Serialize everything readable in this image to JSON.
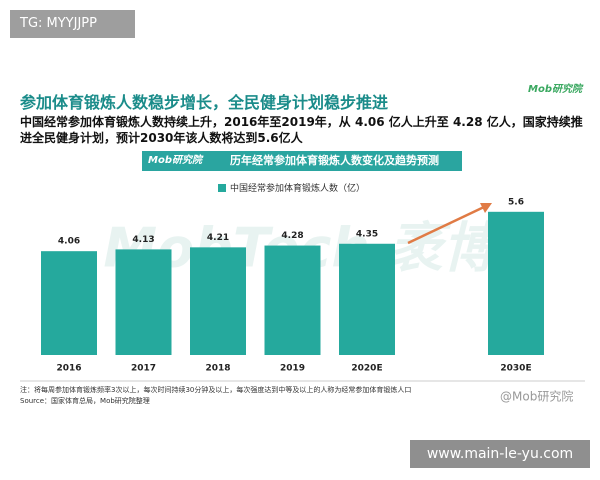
{
  "tag": "TG: MYYJJPP",
  "title": "参加体育锻炼人数稳步增长，全民健身计划稳步推进",
  "logo": "Mob研究院",
  "subtitle": "中国经常参加体育锻炼人数持续上升，2016年至2019年，从 4.06 亿人上升至 4.28 亿人，国家持续推进全民健身计划，预计2030年该人数将达到5.6亿人",
  "banner": {
    "logo": "Mob研究院",
    "title": "历年经常参加体育锻炼人数变化及趋势预测"
  },
  "background_watermark": "MobTech 袤博",
  "note": "注：将每周参加体育锻炼频率3次以上，每次时间持续30分钟及以上，每次强度达到中等及以上的人称为经常参加体育锻炼人口",
  "source": "Source：国家体育总局，Mob研究院整理",
  "watermark": "@Mob研究院",
  "url": "www.main-le-yu.com",
  "chart_data": {
    "type": "bar",
    "categories": [
      "2016",
      "2017",
      "2018",
      "2019",
      "2020E",
      "2030E"
    ],
    "series": [
      {
        "name": "中国经常参加体育锻炼人数（亿）",
        "color": "#25a99d",
        "values": [
          4.06,
          4.13,
          4.21,
          4.28,
          4.35,
          5.6
        ]
      }
    ],
    "ylim": [
      0,
      7
    ]
  }
}
